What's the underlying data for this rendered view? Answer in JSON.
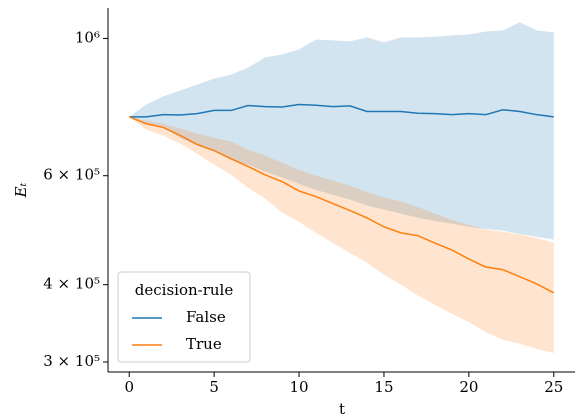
{
  "chart_data": {
    "type": "line",
    "xlabel": "t",
    "ylabel": "Eₜ",
    "x": [
      0,
      1,
      2,
      3,
      4,
      5,
      6,
      7,
      8,
      9,
      10,
      11,
      12,
      13,
      14,
      15,
      16,
      17,
      18,
      19,
      20,
      21,
      22,
      23,
      24,
      25
    ],
    "xlim": [
      -1.25,
      26.25
    ],
    "xticks": [
      0,
      5,
      10,
      15,
      20,
      25
    ],
    "log_y": true,
    "ylim": [
      289000,
      1120000
    ],
    "yticks": [
      {
        "value": 300000,
        "label": "3 × 10⁵"
      },
      {
        "value": 400000,
        "label": "4 × 10⁵"
      },
      {
        "value": 600000,
        "label": "6 × 10⁵"
      },
      {
        "value": 1000000,
        "label": "10⁶"
      }
    ],
    "legend_title": "decision-rule",
    "legend": "lower left",
    "series": [
      {
        "name": "False",
        "color": "#1f77b4",
        "values": [
          747000,
          747000,
          753000,
          752000,
          756000,
          765000,
          765000,
          779000,
          776000,
          775000,
          782000,
          780000,
          776000,
          778000,
          762000,
          762000,
          762000,
          757000,
          756000,
          753000,
          756000,
          753000,
          767000,
          762000,
          753000,
          747000
        ],
        "upper": [
          747000,
          782000,
          806000,
          824000,
          842000,
          861000,
          874000,
          897000,
          932000,
          942000,
          960000,
          996000,
          993000,
          989000,
          1004000,
          985000,
          1004000,
          1004000,
          1007000,
          1011000,
          1015000,
          1026000,
          1030000,
          1062000,
          1030000,
          1023000
        ],
        "lower": [
          747000,
          728000,
          718000,
          691000,
          671000,
          656000,
          637000,
          625000,
          609000,
          596000,
          582000,
          569000,
          559000,
          549000,
          537000,
          529000,
          521000,
          513000,
          507000,
          502000,
          496000,
          492000,
          489000,
          483000,
          478000,
          473000
        ]
      },
      {
        "name": "True",
        "color": "#ff7f0e",
        "values": [
          747000,
          728000,
          718000,
          697000,
          674000,
          659000,
          639000,
          621000,
          602000,
          587000,
          567000,
          555000,
          541000,
          527000,
          513000,
          496000,
          485000,
          480000,
          467000,
          455000,
          440000,
          427000,
          423000,
          412000,
          401000,
          388000
        ],
        "upper": [
          747000,
          736000,
          728000,
          715000,
          702000,
          691000,
          681000,
          661000,
          647000,
          630000,
          613000,
          600000,
          589000,
          578000,
          565000,
          553000,
          545000,
          534000,
          521000,
          509000,
          500000,
          491000,
          487000,
          482000,
          476000,
          467000
        ],
        "lower": [
          747000,
          712000,
          697000,
          676000,
          651000,
          625000,
          602000,
          574000,
          551000,
          523000,
          505000,
          485000,
          467000,
          450000,
          434000,
          415000,
          400000,
          384000,
          371000,
          359000,
          348000,
          335000,
          326000,
          321000,
          315000,
          310000
        ]
      }
    ]
  }
}
